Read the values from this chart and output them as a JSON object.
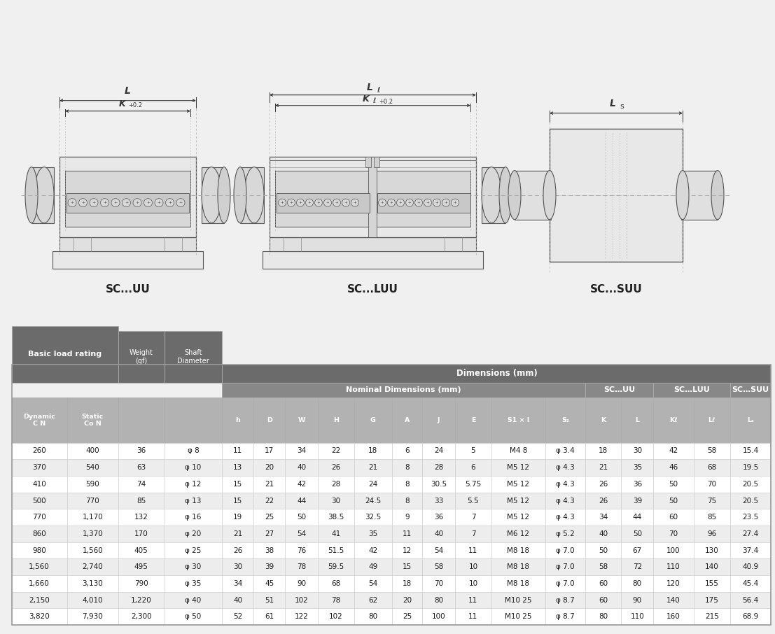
{
  "rows": [
    [
      "260",
      "400",
      "36",
      "φ 8",
      "11",
      "17",
      "34",
      "22",
      "18",
      "6",
      "24",
      "5",
      "M4 8",
      "φ 3.4",
      "18",
      "30",
      "42",
      "58",
      "15.4"
    ],
    [
      "370",
      "540",
      "63",
      "φ 10",
      "13",
      "20",
      "40",
      "26",
      "21",
      "8",
      "28",
      "6",
      "M5 12",
      "φ 4.3",
      "21",
      "35",
      "46",
      "68",
      "19.5"
    ],
    [
      "410",
      "590",
      "74",
      "φ 12",
      "15",
      "21",
      "42",
      "28",
      "24",
      "8",
      "30.5",
      "5.75",
      "M5 12",
      "φ 4.3",
      "26",
      "36",
      "50",
      "70",
      "20.5"
    ],
    [
      "500",
      "770",
      "85",
      "φ 13",
      "15",
      "22",
      "44",
      "30",
      "24.5",
      "8",
      "33",
      "5.5",
      "M5 12",
      "φ 4.3",
      "26",
      "39",
      "50",
      "75",
      "20.5"
    ],
    [
      "770",
      "1,170",
      "132",
      "φ 16",
      "19",
      "25",
      "50",
      "38.5",
      "32.5",
      "9",
      "36",
      "7",
      "M5 12",
      "φ 4.3",
      "34",
      "44",
      "60",
      "85",
      "23.5"
    ],
    [
      "860",
      "1,370",
      "170",
      "φ 20",
      "21",
      "27",
      "54",
      "41",
      "35",
      "11",
      "40",
      "7",
      "M6 12",
      "φ 5.2",
      "40",
      "50",
      "70",
      "96",
      "27.4"
    ],
    [
      "980",
      "1,560",
      "405",
      "φ 25",
      "26",
      "38",
      "76",
      "51.5",
      "42",
      "12",
      "54",
      "11",
      "M8 18",
      "φ 7.0",
      "50",
      "67",
      "100",
      "130",
      "37.4"
    ],
    [
      "1,560",
      "2,740",
      "495",
      "φ 30",
      "30",
      "39",
      "78",
      "59.5",
      "49",
      "15",
      "58",
      "10",
      "M8 18",
      "φ 7.0",
      "58",
      "72",
      "110",
      "140",
      "40.9"
    ],
    [
      "1,660",
      "3,130",
      "790",
      "φ 35",
      "34",
      "45",
      "90",
      "68",
      "54",
      "18",
      "70",
      "10",
      "M8 18",
      "φ 7.0",
      "60",
      "80",
      "120",
      "155",
      "45.4"
    ],
    [
      "2,150",
      "4,010",
      "1,220",
      "φ 40",
      "40",
      "51",
      "102",
      "78",
      "62",
      "20",
      "80",
      "11",
      "M10 25",
      "φ 8.7",
      "60",
      "90",
      "140",
      "175",
      "56.4"
    ],
    [
      "3,820",
      "7,930",
      "2,300",
      "φ 50",
      "52",
      "61",
      "122",
      "102",
      "80",
      "25",
      "100",
      "11",
      "M10 25",
      "φ 8.7",
      "80",
      "110",
      "160",
      "215",
      "68.9"
    ]
  ],
  "drawing_bg": "#e8e8e8",
  "page_bg": "#f0f0f0",
  "table_bg": "#f5f5f5",
  "hdr1_fc": "#6b6b6b",
  "hdr2_fc": "#888888",
  "col_hdr_fc": "#b2b2b2",
  "row_even": "#ffffff",
  "row_odd": "#ededed",
  "text_dark": "#1a1a1a",
  "text_white": "#ffffff",
  "line_color": "#555555",
  "dim_color": "#333333",
  "dash_color": "#aaaaaa"
}
